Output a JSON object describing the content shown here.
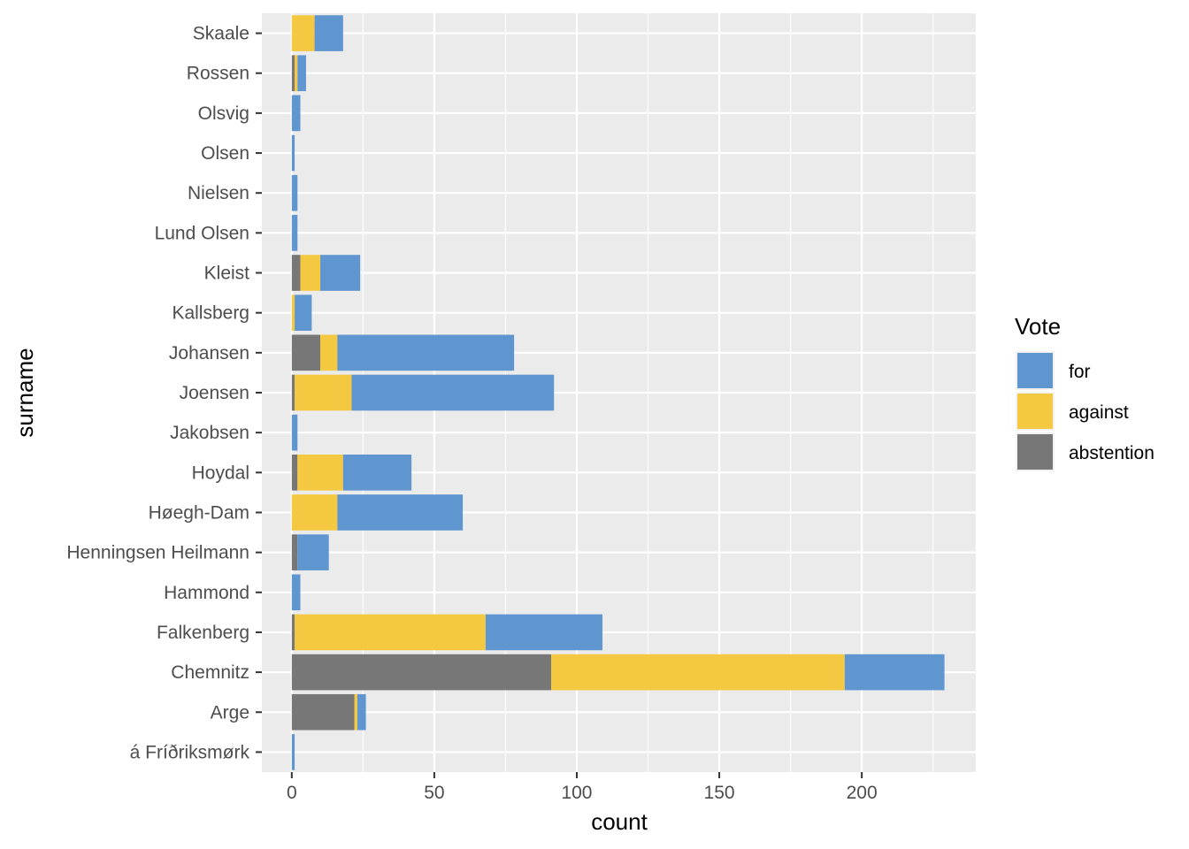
{
  "chart_data": {
    "type": "bar",
    "orientation": "horizontal",
    "stacked": true,
    "title": "",
    "xlabel": "count",
    "ylabel": "surname",
    "xlim": [
      -10.5,
      240
    ],
    "xticks": [
      0,
      50,
      100,
      150,
      200
    ],
    "grid": true,
    "legend": {
      "title": "Vote",
      "position": "right"
    },
    "categories": [
      "á Fríðriksmørk",
      "Arge",
      "Chemnitz",
      "Falkenberg",
      "Hammond",
      "Henningsen Heilmann",
      "Høegh-Dam",
      "Hoydal",
      "Jakobsen",
      "Joensen",
      "Johansen",
      "Kallsberg",
      "Kleist",
      "Lund Olsen",
      "Nielsen",
      "Olsen",
      "Olsvig",
      "Rossen",
      "Skaale"
    ],
    "series": [
      {
        "name": "for",
        "color": "#6096D0",
        "values": [
          1,
          3,
          35,
          41,
          3,
          11,
          44,
          24,
          2,
          71,
          62,
          6,
          14,
          2,
          2,
          1,
          3,
          3,
          10
        ]
      },
      {
        "name": "against",
        "color": "#F5C842",
        "values": [
          0,
          1,
          103,
          67,
          0,
          0,
          16,
          16,
          0,
          20,
          6,
          1,
          7,
          0,
          0,
          0,
          0,
          1,
          8
        ]
      },
      {
        "name": "abstention",
        "color": "#777777",
        "values": [
          0,
          22,
          91,
          1,
          0,
          2,
          0,
          2,
          0,
          1,
          10,
          0,
          3,
          0,
          0,
          0,
          0,
          1,
          0
        ]
      }
    ]
  }
}
